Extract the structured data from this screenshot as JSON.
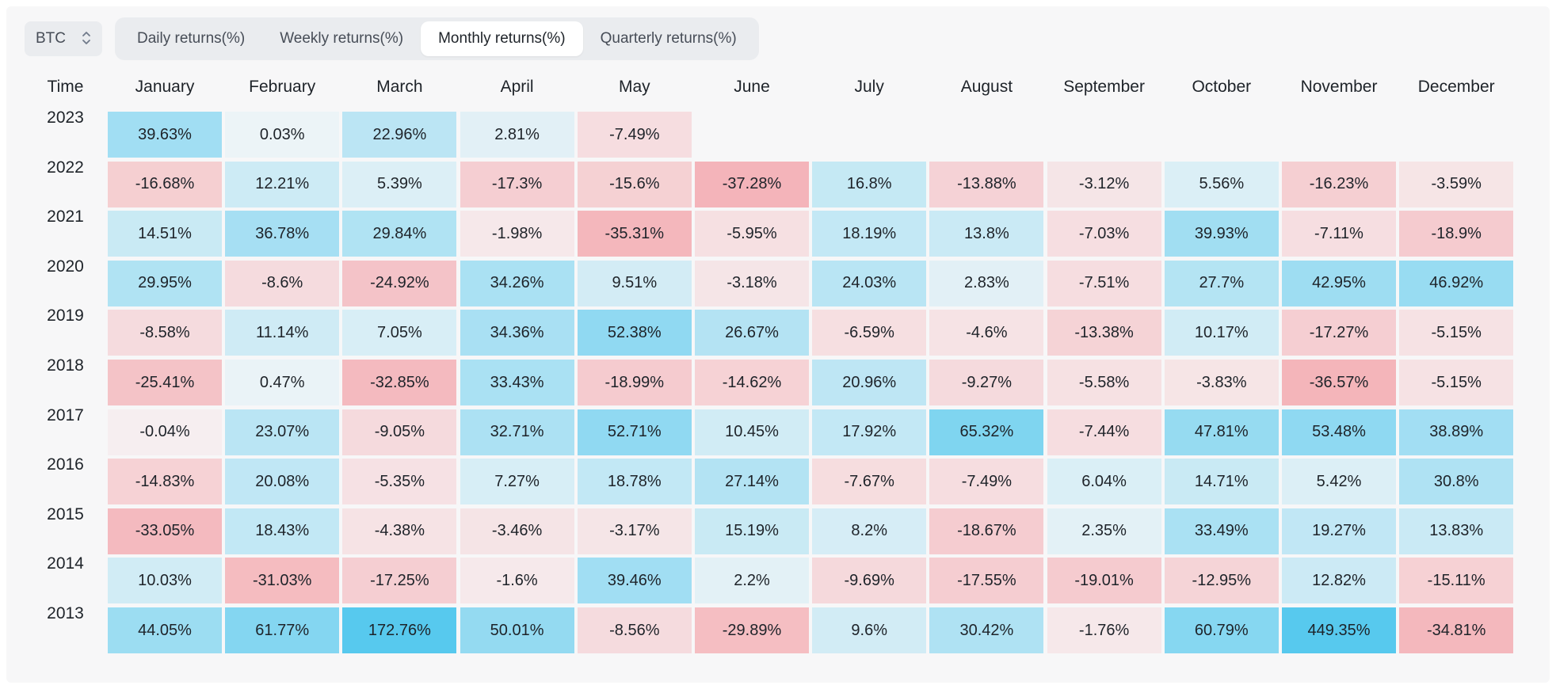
{
  "controls": {
    "symbol": "BTC",
    "tabs": [
      {
        "label": "Daily returns(%)",
        "active": false
      },
      {
        "label": "Weekly returns(%)",
        "active": false
      },
      {
        "label": "Monthly returns(%)",
        "active": true
      },
      {
        "label": "Quarterly returns(%)",
        "active": false
      }
    ]
  },
  "colors": {
    "positive": "#2ebd6b",
    "negative": "#f0545f",
    "text": "#1e2329",
    "panel_bg": "#f7f7f8"
  },
  "chart_data": {
    "type": "heatmap",
    "row_header": "Time",
    "columns": [
      "January",
      "February",
      "March",
      "April",
      "May",
      "June",
      "July",
      "August",
      "September",
      "October",
      "November",
      "December"
    ],
    "rows": [
      {
        "year": "2023",
        "values": [
          "39.63%",
          "0.03%",
          "22.96%",
          "2.81%",
          "-7.49%",
          null,
          null,
          null,
          null,
          null,
          null,
          null
        ]
      },
      {
        "year": "2022",
        "values": [
          "-16.68%",
          "12.21%",
          "5.39%",
          "-17.3%",
          "-15.6%",
          "-37.28%",
          "16.8%",
          "-13.88%",
          "-3.12%",
          "5.56%",
          "-16.23%",
          "-3.59%"
        ]
      },
      {
        "year": "2021",
        "values": [
          "14.51%",
          "36.78%",
          "29.84%",
          "-1.98%",
          "-35.31%",
          "-5.95%",
          "18.19%",
          "13.8%",
          "-7.03%",
          "39.93%",
          "-7.11%",
          "-18.9%"
        ]
      },
      {
        "year": "2020",
        "values": [
          "29.95%",
          "-8.6%",
          "-24.92%",
          "34.26%",
          "9.51%",
          "-3.18%",
          "24.03%",
          "2.83%",
          "-7.51%",
          "27.7%",
          "42.95%",
          "46.92%"
        ]
      },
      {
        "year": "2019",
        "values": [
          "-8.58%",
          "11.14%",
          "7.05%",
          "34.36%",
          "52.38%",
          "26.67%",
          "-6.59%",
          "-4.6%",
          "-13.38%",
          "10.17%",
          "-17.27%",
          "-5.15%"
        ]
      },
      {
        "year": "2018",
        "values": [
          "-25.41%",
          "0.47%",
          "-32.85%",
          "33.43%",
          "-18.99%",
          "-14.62%",
          "20.96%",
          "-9.27%",
          "-5.58%",
          "-3.83%",
          "-36.57%",
          "-5.15%"
        ]
      },
      {
        "year": "2017",
        "values": [
          "-0.04%",
          "23.07%",
          "-9.05%",
          "32.71%",
          "52.71%",
          "10.45%",
          "17.92%",
          "65.32%",
          "-7.44%",
          "47.81%",
          "53.48%",
          "38.89%"
        ]
      },
      {
        "year": "2016",
        "values": [
          "-14.83%",
          "20.08%",
          "-5.35%",
          "7.27%",
          "18.78%",
          "27.14%",
          "-7.67%",
          "-7.49%",
          "6.04%",
          "14.71%",
          "5.42%",
          "30.8%"
        ]
      },
      {
        "year": "2015",
        "values": [
          "-33.05%",
          "18.43%",
          "-4.38%",
          "-3.46%",
          "-3.17%",
          "15.19%",
          "8.2%",
          "-18.67%",
          "2.35%",
          "33.49%",
          "19.27%",
          "13.83%"
        ]
      },
      {
        "year": "2014",
        "values": [
          "10.03%",
          "-31.03%",
          "-17.25%",
          "-1.6%",
          "39.46%",
          "2.2%",
          "-9.69%",
          "-17.55%",
          "-19.01%",
          "-12.95%",
          "12.82%",
          "-15.11%"
        ]
      },
      {
        "year": "2013",
        "values": [
          "44.05%",
          "61.77%",
          "172.76%",
          "50.01%",
          "-8.56%",
          "-29.89%",
          "9.6%",
          "30.42%",
          "-1.76%",
          "60.79%",
          "449.35%",
          "-34.81%"
        ]
      }
    ]
  }
}
